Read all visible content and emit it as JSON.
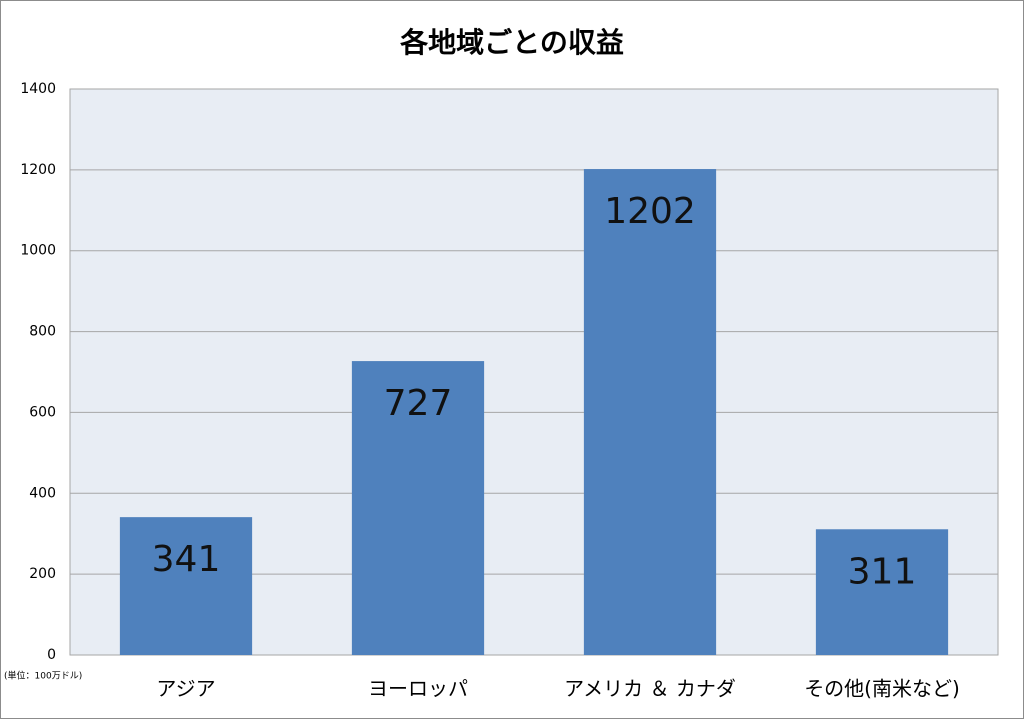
{
  "chart_data": {
    "type": "bar",
    "title": "各地域ごとの収益",
    "note": "(単位：100万ドル)",
    "categories": [
      "アジア",
      "ヨーロッパ",
      "アメリカ ＆ カナダ",
      "その他(南米など)"
    ],
    "values": [
      341,
      727,
      1202,
      311
    ],
    "color": "#4f81bd",
    "ylim": [
      0,
      1400
    ],
    "yticks": [
      0,
      200,
      400,
      600,
      800,
      1000,
      1200,
      1400
    ],
    "grid": true,
    "data_labels": true
  }
}
